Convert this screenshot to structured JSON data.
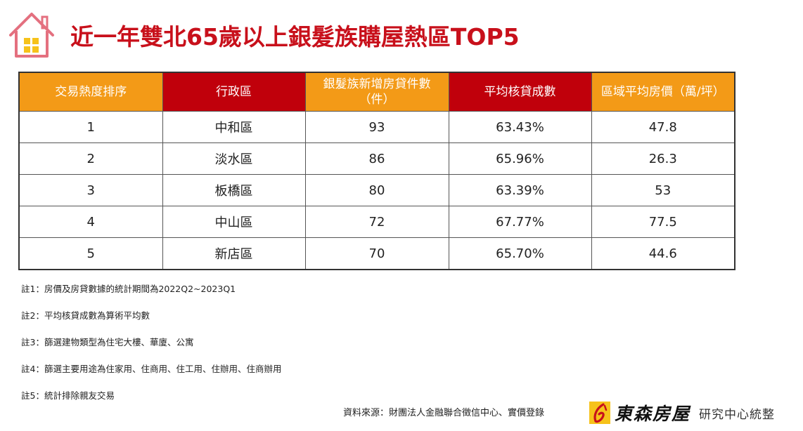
{
  "title": "近一年雙北65歲以上銀髮族購屋熱區TOP5",
  "table": {
    "headers": [
      {
        "label": "交易熱度排序",
        "color": "#f39a17"
      },
      {
        "label": "行政區",
        "color": "#c0000b"
      },
      {
        "label": "銀髮族新增房貸件數（件）",
        "color": "#f39a17"
      },
      {
        "label": "平均核貸成數",
        "color": "#c0000b"
      },
      {
        "label": "區域平均房價（萬/坪）",
        "color": "#f39a17"
      }
    ],
    "rows": [
      {
        "rank": "1",
        "district": "中和區",
        "loans": "93",
        "ratio": "63.43%",
        "price": "47.8"
      },
      {
        "rank": "2",
        "district": "淡水區",
        "loans": "86",
        "ratio": "65.96%",
        "price": "26.3"
      },
      {
        "rank": "3",
        "district": "板橋區",
        "loans": "80",
        "ratio": "63.39%",
        "price": "53"
      },
      {
        "rank": "4",
        "district": "中山區",
        "loans": "72",
        "ratio": "67.77%",
        "price": "77.5"
      },
      {
        "rank": "5",
        "district": "新店區",
        "loans": "70",
        "ratio": "65.70%",
        "price": "44.6"
      }
    ]
  },
  "notes": [
    "註1：房價及房貸數據的統計期間為2022Q2~2023Q1",
    "註2：平均核貸成數為算術平均數",
    "註3：篩選建物類型為住宅大樓、華廈、公寓",
    "註4：篩選主要用途為住家用、住商用、住工用、住辦用、住商辦用",
    "註5：統計排除親友交易"
  ],
  "source": "資料來源：財團法人金融聯合徵信中心、實價登錄",
  "brand": {
    "name": "東森房屋",
    "suffix": "研究中心統整"
  },
  "colors": {
    "title": "#c8101b",
    "orange": "#f39a17",
    "red": "#c0000b",
    "logo_yellow": "#f6c21a",
    "logo_pink": "#e4707f"
  },
  "icons": {
    "logo": "house-icon",
    "brand": "brand-mark-icon"
  }
}
